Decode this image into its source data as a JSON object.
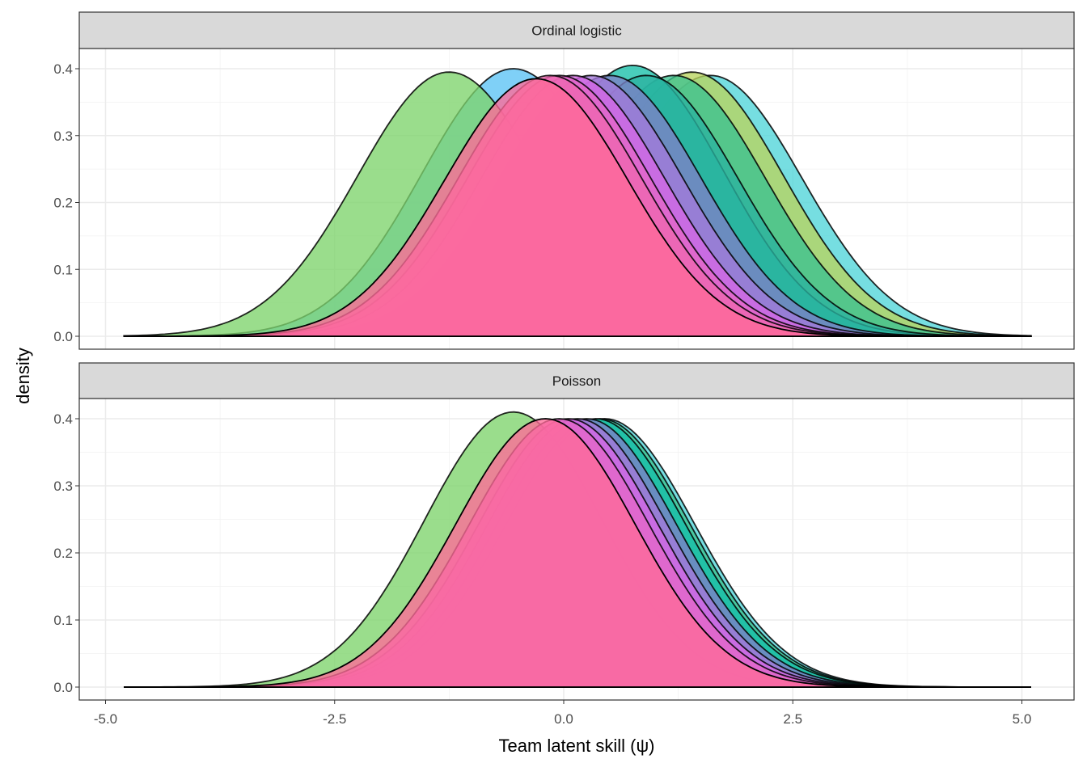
{
  "chart_data": [
    {
      "type": "area",
      "facet": "Ordinal logistic",
      "xlabel": "Team latent skill (ψ)",
      "ylabel": "density",
      "xlim": [
        -5.0,
        5.1
      ],
      "ylim": [
        0,
        0.42
      ],
      "x_ticks": [
        "-5.0",
        "-2.5",
        "0.0",
        "2.5",
        "5.0"
      ],
      "y_ticks": [
        "0.0",
        "0.1",
        "0.2",
        "0.3",
        "0.4"
      ],
      "grid": true,
      "series": [
        {
          "mode": 1.6,
          "sd": 1.0,
          "peak": 0.39,
          "color": "#4FD5D8"
        },
        {
          "mode": 1.4,
          "sd": 1.0,
          "peak": 0.395,
          "color": "#B9D35E"
        },
        {
          "mode": 1.2,
          "sd": 1.0,
          "peak": 0.39,
          "color": "#3CC28F"
        },
        {
          "mode": 0.75,
          "sd": 1.0,
          "peak": 0.405,
          "color": "#17BFA8"
        },
        {
          "mode": 0.9,
          "sd": 1.0,
          "peak": 0.39,
          "color": "#2BB2A0"
        },
        {
          "mode": -0.55,
          "sd": 1.0,
          "peak": 0.4,
          "color": "#5BC3F5"
        },
        {
          "mode": -1.25,
          "sd": 1.0,
          "peak": 0.395,
          "color": "#7ED36B"
        },
        {
          "mode": 0.5,
          "sd": 1.0,
          "peak": 0.39,
          "color": "#7E80C8"
        },
        {
          "mode": 0.3,
          "sd": 1.0,
          "peak": 0.39,
          "color": "#A47ADB"
        },
        {
          "mode": 0.1,
          "sd": 1.0,
          "peak": 0.39,
          "color": "#D766E6"
        },
        {
          "mode": -0.05,
          "sd": 1.0,
          "peak": 0.39,
          "color": "#E566C8"
        },
        {
          "mode": -0.15,
          "sd": 1.0,
          "peak": 0.39,
          "color": "#F066B0"
        },
        {
          "mode": -0.3,
          "sd": 1.0,
          "peak": 0.385,
          "color": "#FF6A98"
        }
      ]
    },
    {
      "type": "area",
      "facet": "Poisson",
      "xlabel": "Team latent skill (ψ)",
      "ylabel": "density",
      "xlim": [
        -5.0,
        5.1
      ],
      "ylim": [
        0,
        0.42
      ],
      "x_ticks": [
        "-5.0",
        "-2.5",
        "0.0",
        "2.5",
        "5.0"
      ],
      "y_ticks": [
        "0.0",
        "0.1",
        "0.2",
        "0.3",
        "0.4"
      ],
      "grid": true,
      "series": [
        {
          "mode": 0.45,
          "sd": 0.98,
          "peak": 0.4,
          "color": "#4FD5D8"
        },
        {
          "mode": 0.4,
          "sd": 0.98,
          "peak": 0.4,
          "color": "#3CC28F"
        },
        {
          "mode": 0.35,
          "sd": 0.98,
          "peak": 0.4,
          "color": "#17BFA8"
        },
        {
          "mode": -0.55,
          "sd": 0.97,
          "peak": 0.41,
          "color": "#7ED36B"
        },
        {
          "mode": 0.25,
          "sd": 0.98,
          "peak": 0.4,
          "color": "#7E80C8"
        },
        {
          "mode": 0.15,
          "sd": 0.98,
          "peak": 0.4,
          "color": "#A47ADB"
        },
        {
          "mode": 0.05,
          "sd": 0.98,
          "peak": 0.4,
          "color": "#D766E6"
        },
        {
          "mode": -0.05,
          "sd": 0.98,
          "peak": 0.4,
          "color": "#E566C8"
        },
        {
          "mode": -0.2,
          "sd": 0.98,
          "peak": 0.4,
          "color": "#FF6A98"
        }
      ]
    }
  ]
}
